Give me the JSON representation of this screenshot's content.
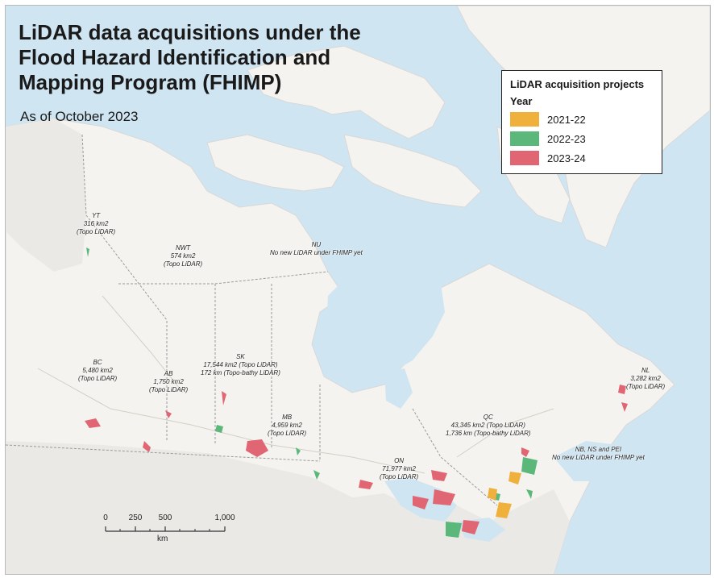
{
  "map": {
    "title": "LiDAR data acquisitions under the Flood Hazard Identification and Mapping Program (FHIMP)",
    "subtitle": "As of October 2023"
  },
  "legend": {
    "heading": "LiDAR acquisition projects",
    "year_label": "Year",
    "items": [
      {
        "label": "2021-22",
        "color": "#f0b03c"
      },
      {
        "label": "2022-23",
        "color": "#5bb87a"
      },
      {
        "label": "2023-24",
        "color": "#e06673"
      }
    ]
  },
  "regions": [
    {
      "code": "YT",
      "lines": [
        "316 km2",
        "(Topo LiDAR)"
      ]
    },
    {
      "code": "NWT",
      "lines": [
        "574 km2",
        "(Topo LiDAR)"
      ]
    },
    {
      "code": "NU",
      "lines": [
        "No new LiDAR under FHIMP yet"
      ]
    },
    {
      "code": "BC",
      "lines": [
        "5,480 km2",
        "(Topo LiDAR)"
      ]
    },
    {
      "code": "AB",
      "lines": [
        "1,750 km2",
        "(Topo LiDAR)"
      ]
    },
    {
      "code": "SK",
      "lines": [
        "17,544 km2 (Topo LiDAR)",
        "172 km (Topo-bathy LiDAR)"
      ]
    },
    {
      "code": "MB",
      "lines": [
        "4,959 km2",
        "(Topo LiDAR)"
      ]
    },
    {
      "code": "ON",
      "lines": [
        "71,977 km2",
        "(Topo LiDAR)"
      ]
    },
    {
      "code": "QC",
      "lines": [
        "43,345 km2 (Topo LiDAR)",
        "1,736 km (Topo-bathy LiDAR)"
      ]
    },
    {
      "code": "NB, NS and PEI",
      "lines": [
        "No new LiDAR under FHIMP yet"
      ]
    },
    {
      "code": "NL",
      "lines": [
        "3,282 km2",
        "(Topo LiDAR)"
      ]
    }
  ],
  "scalebar": {
    "ticks": [
      "0",
      "250",
      "500",
      "1,000"
    ],
    "unit": "km"
  },
  "colors": {
    "water": "#cfe5f2",
    "land": "#f5f3ef",
    "usa": "#ebe9e6",
    "border": "#9a9a9a"
  }
}
